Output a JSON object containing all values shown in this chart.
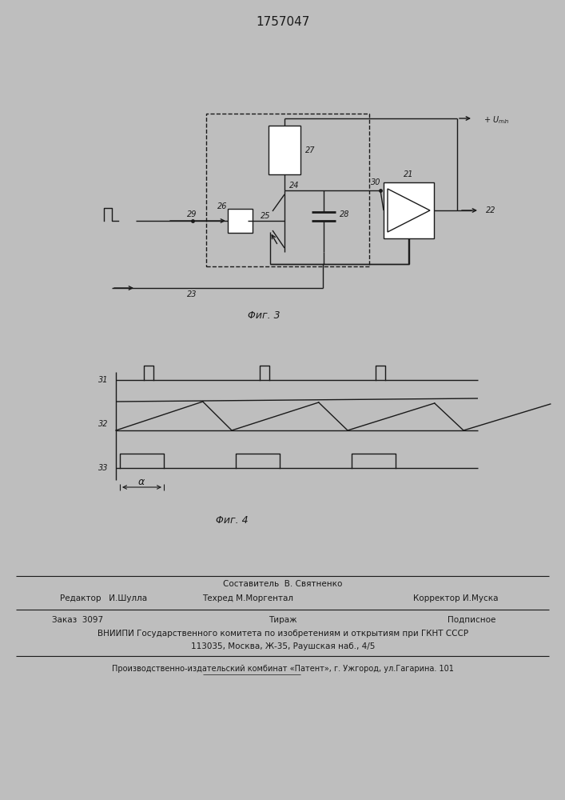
{
  "title": "1757047",
  "bg_color": "#c8c8c8",
  "line_color": "#1a1a1a",
  "fig3_caption": "Φиг. 3",
  "fig4_caption": "Φиг. 4",
  "footer_editor": "Редактор   И.Шулла",
  "footer_comp": "Составитель  В. Святненко",
  "footer_tech": "Техред М.Моргентал",
  "footer_corr": "Корректор И.Муска",
  "footer_order": "Заказ  3097",
  "footer_tirazh": "Тираж",
  "footer_podp": "Подписное",
  "footer_vniip": "ВНИИПИ Государственного комитета по изобретениям и открытиям при ГКНТ СССР",
  "footer_addr": "113035, Москва, Ж-35, Раушская наб., 4/5",
  "footer_prod": "Производственно-издательский комбинат «Патент», г. Ужгород, ул.Гагарина. 101"
}
